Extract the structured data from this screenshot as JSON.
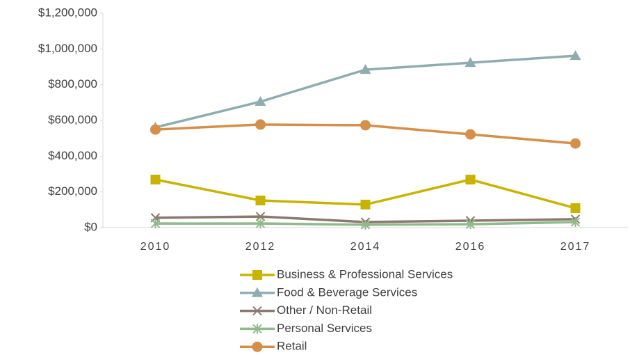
{
  "chart_data": {
    "type": "line",
    "categories": [
      "2010",
      "2012",
      "2014",
      "2016",
      "2017"
    ],
    "ylim": [
      0,
      1200000
    ],
    "yticks": [
      {
        "value": 0,
        "label": "$0"
      },
      {
        "value": 200000,
        "label": "$200,000"
      },
      {
        "value": 400000,
        "label": "$400,000"
      },
      {
        "value": 600000,
        "label": "$600,000"
      },
      {
        "value": 800000,
        "label": "$800,000"
      },
      {
        "value": 1000000,
        "label": "$1,000,000"
      },
      {
        "value": 1200000,
        "label": "$1,200,000"
      }
    ],
    "grid": false,
    "legend": "bottom",
    "series": [
      {
        "name": "Business & Professional Services",
        "color": "#c9b300",
        "marker": "square",
        "values": [
          269000,
          152000,
          129000,
          269000,
          109000
        ]
      },
      {
        "name": "Food & Beverage Services",
        "color": "#8eadb0",
        "marker": "triangle",
        "values": [
          561000,
          705000,
          884000,
          923000,
          962000
        ]
      },
      {
        "name": "Other / Non-Retail",
        "color": "#8b786e",
        "marker": "x",
        "values": [
          55000,
          62000,
          31000,
          39000,
          47000
        ]
      },
      {
        "name": "Personal Services",
        "color": "#8fba8a",
        "marker": "asterisk",
        "values": [
          23000,
          23000,
          16000,
          19000,
          31000
        ]
      },
      {
        "name": "Retail",
        "color": "#d58f48",
        "marker": "circle",
        "values": [
          549000,
          577000,
          573000,
          522000,
          471000
        ]
      }
    ]
  }
}
